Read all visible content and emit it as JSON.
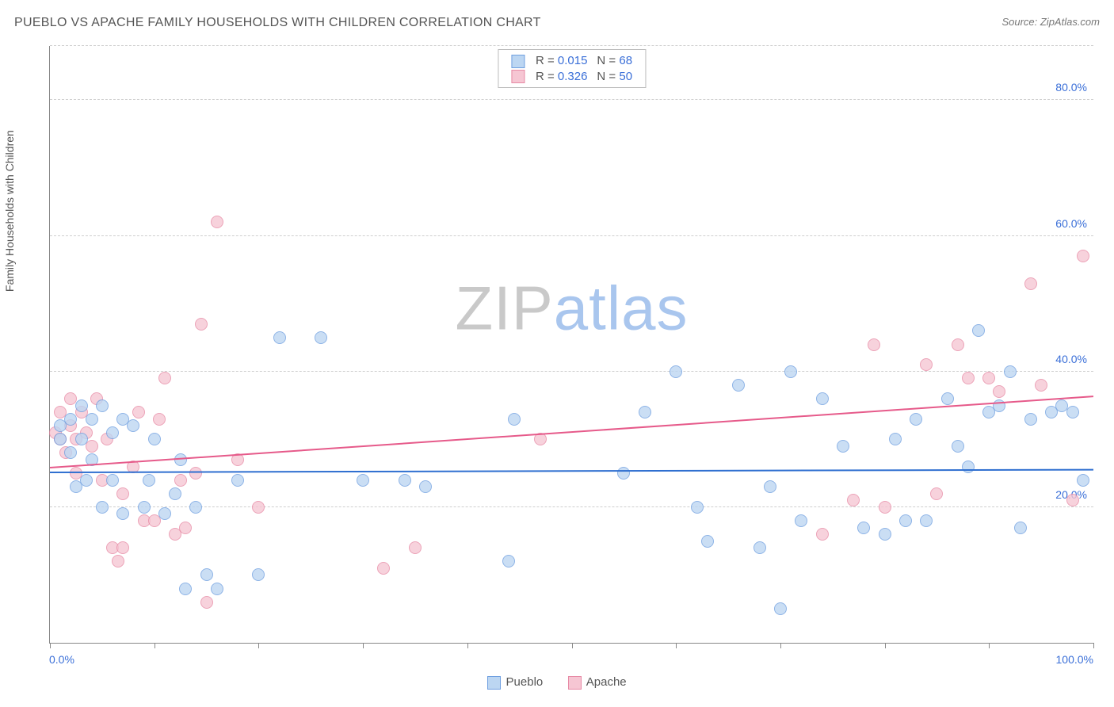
{
  "header": {
    "title": "PUEBLO VS APACHE FAMILY HOUSEHOLDS WITH CHILDREN CORRELATION CHART",
    "source_prefix": "Source: ",
    "source_name": "ZipAtlas.com"
  },
  "axes": {
    "y_label": "Family Households with Children",
    "y_min": 0,
    "y_max": 88,
    "y_ticks": [
      20,
      40,
      60,
      80
    ],
    "y_tick_labels": [
      "20.0%",
      "40.0%",
      "60.0%",
      "80.0%"
    ],
    "x_min": 0,
    "x_max": 100,
    "x_ticks": [
      0,
      10,
      20,
      30,
      40,
      50,
      60,
      70,
      80,
      90,
      100
    ],
    "x_end_labels": [
      "0.0%",
      "100.0%"
    ]
  },
  "style": {
    "background": "#ffffff",
    "grid_color": "#cfcfcf",
    "axis_color": "#888888",
    "text_color": "#555555",
    "tick_label_color": "#3a6fd8",
    "watermark_zip_color": "#c9c9c9",
    "watermark_atlas_color": "#a9c6ee",
    "point_radius": 8,
    "point_opacity": 0.78,
    "trend_line_width": 2
  },
  "series": {
    "pueblo": {
      "label": "Pueblo",
      "fill": "#bcd6f2",
      "stroke": "#6f9fe0",
      "trend_color": "#2f6fd0",
      "r_label": "R = ",
      "r_value": "0.015",
      "n_label": "N = ",
      "n_value": "68",
      "trend": {
        "y_at_xmin": 25.3,
        "y_at_xmax": 25.7
      },
      "points": [
        [
          1,
          30
        ],
        [
          1,
          32
        ],
        [
          2,
          28
        ],
        [
          2,
          33
        ],
        [
          2.5,
          23
        ],
        [
          3,
          35
        ],
        [
          3,
          30
        ],
        [
          3.5,
          24
        ],
        [
          4,
          33
        ],
        [
          4,
          27
        ],
        [
          5,
          35
        ],
        [
          5,
          20
        ],
        [
          6,
          24
        ],
        [
          6,
          31
        ],
        [
          7,
          19
        ],
        [
          7,
          33
        ],
        [
          8,
          32
        ],
        [
          9,
          20
        ],
        [
          9.5,
          24
        ],
        [
          10,
          30
        ],
        [
          11,
          19
        ],
        [
          12,
          22
        ],
        [
          12.5,
          27
        ],
        [
          13,
          8
        ],
        [
          14,
          20
        ],
        [
          15,
          10
        ],
        [
          16,
          8
        ],
        [
          18,
          24
        ],
        [
          20,
          10
        ],
        [
          22,
          45
        ],
        [
          26,
          45
        ],
        [
          30,
          24
        ],
        [
          34,
          24
        ],
        [
          36,
          23
        ],
        [
          44,
          12
        ],
        [
          44.5,
          33
        ],
        [
          55,
          25
        ],
        [
          57,
          34
        ],
        [
          60,
          40
        ],
        [
          62,
          20
        ],
        [
          63,
          15
        ],
        [
          66,
          38
        ],
        [
          68,
          14
        ],
        [
          69,
          23
        ],
        [
          70,
          5
        ],
        [
          71,
          40
        ],
        [
          72,
          18
        ],
        [
          74,
          36
        ],
        [
          76,
          29
        ],
        [
          78,
          17
        ],
        [
          80,
          16
        ],
        [
          81,
          30
        ],
        [
          82,
          18
        ],
        [
          83,
          33
        ],
        [
          84,
          18
        ],
        [
          86,
          36
        ],
        [
          87,
          29
        ],
        [
          88,
          26
        ],
        [
          89,
          46
        ],
        [
          90,
          34
        ],
        [
          91,
          35
        ],
        [
          92,
          40
        ],
        [
          93,
          17
        ],
        [
          94,
          33
        ],
        [
          96,
          34
        ],
        [
          97,
          35
        ],
        [
          98,
          34
        ],
        [
          99,
          24
        ]
      ]
    },
    "apache": {
      "label": "Apache",
      "fill": "#f6c6d3",
      "stroke": "#e78aa5",
      "trend_color": "#e65a8a",
      "r_label": "R = ",
      "r_value": "0.326",
      "n_label": "N = ",
      "n_value": "50",
      "trend": {
        "y_at_xmin": 26.0,
        "y_at_xmax": 36.5
      },
      "points": [
        [
          0.5,
          31
        ],
        [
          1,
          30
        ],
        [
          1,
          34
        ],
        [
          1.5,
          28
        ],
        [
          2,
          32
        ],
        [
          2,
          36
        ],
        [
          2.5,
          30
        ],
        [
          2.5,
          25
        ],
        [
          3,
          34
        ],
        [
          3.5,
          31
        ],
        [
          4,
          29
        ],
        [
          4.5,
          36
        ],
        [
          5,
          24
        ],
        [
          5.5,
          30
        ],
        [
          6,
          14
        ],
        [
          6.5,
          12
        ],
        [
          7,
          22
        ],
        [
          7,
          14
        ],
        [
          8,
          26
        ],
        [
          8.5,
          34
        ],
        [
          9,
          18
        ],
        [
          10,
          18
        ],
        [
          10.5,
          33
        ],
        [
          11,
          39
        ],
        [
          12,
          16
        ],
        [
          12.5,
          24
        ],
        [
          13,
          17
        ],
        [
          14,
          25
        ],
        [
          14.5,
          47
        ],
        [
          15,
          6
        ],
        [
          16,
          62
        ],
        [
          18,
          27
        ],
        [
          20,
          20
        ],
        [
          32,
          11
        ],
        [
          35,
          14
        ],
        [
          47,
          30
        ],
        [
          74,
          16
        ],
        [
          77,
          21
        ],
        [
          79,
          44
        ],
        [
          80,
          20
        ],
        [
          84,
          41
        ],
        [
          85,
          22
        ],
        [
          87,
          44
        ],
        [
          88,
          39
        ],
        [
          90,
          39
        ],
        [
          91,
          37
        ],
        [
          94,
          53
        ],
        [
          95,
          38
        ],
        [
          98,
          21
        ],
        [
          99,
          57
        ]
      ]
    }
  },
  "legend_bottom": {
    "items": [
      "Pueblo",
      "Apache"
    ]
  },
  "watermark": {
    "part1": "ZIP",
    "part2": "atlas"
  }
}
